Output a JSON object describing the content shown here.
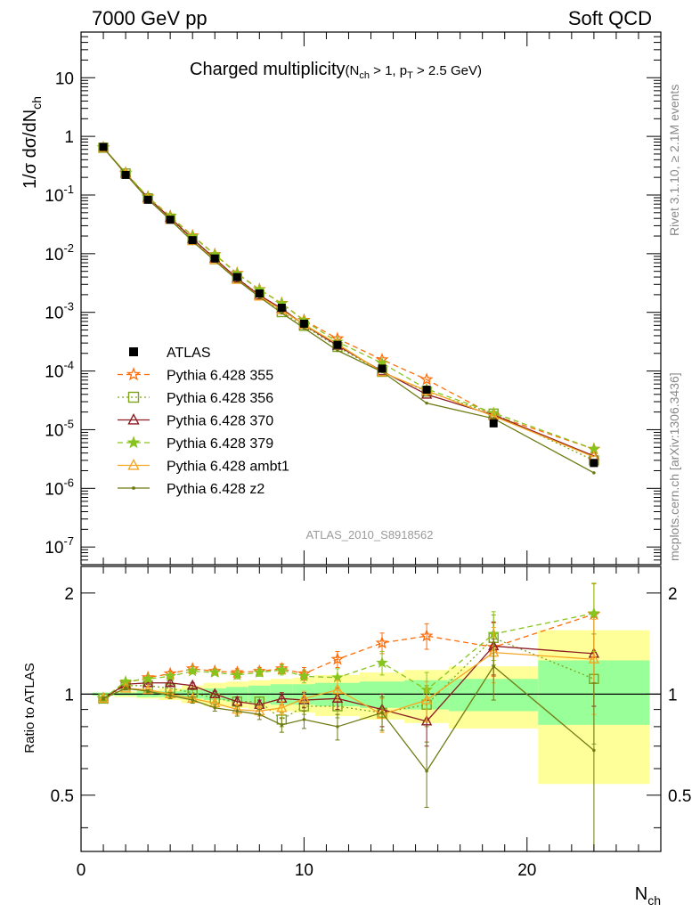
{
  "header": {
    "left": "7000 GeV pp",
    "right": "Soft QCD"
  },
  "side_labels": {
    "version": "Rivet 3.1.10, ≥ 2.1M events",
    "source": "mcplots.cern.ch [arXiv:1306.3436]"
  },
  "watermark": "ATLAS_2010_S8918562",
  "chart_data": {
    "type": "scatter",
    "title": {
      "main": "Charged multiplicity",
      "detail_open": "(N",
      "detail_sub1": "ch",
      "detail_mid": " > 1, p",
      "detail_sub2": "T",
      "detail_close": " > 2.5 GeV)"
    },
    "xlabel": {
      "base": "N",
      "sub": "ch"
    },
    "ylabel": {
      "base": "1/σ dσ/dN",
      "sub": "ch"
    },
    "ratio_ylabel": "Ratio to ATLAS",
    "xlim": [
      0,
      26
    ],
    "ylim": [
      5e-08,
      60
    ],
    "ylog": true,
    "ratio_ylim": [
      0.34,
      2.4
    ],
    "x_ticks": [
      0,
      10,
      20
    ],
    "y_ticks": [
      {
        "base": "10",
        "exp": "-7"
      },
      {
        "base": "10",
        "exp": "-6"
      },
      {
        "base": "10",
        "exp": "-5"
      },
      {
        "base": "10",
        "exp": "-4"
      },
      {
        "base": "10",
        "exp": "-3"
      },
      {
        "base": "10",
        "exp": "-2"
      },
      {
        "base": "10",
        "exp": "-1"
      },
      {
        "base": "1",
        "exp": ""
      },
      {
        "base": "10",
        "exp": ""
      }
    ],
    "y_tick_values": [
      1e-07,
      1e-06,
      1e-05,
      0.0001,
      0.001,
      0.01,
      0.1,
      1,
      10
    ],
    "ratio_ticks": [
      "0.5",
      "1",
      "2"
    ],
    "ratio_tick_values": [
      0.5,
      1,
      2
    ],
    "legend_position": "lower-left",
    "x": [
      1,
      2,
      3,
      4,
      5,
      6,
      7,
      8,
      9,
      10,
      11.5,
      13.5,
      15.5,
      18.5,
      23
    ],
    "data": {
      "name": "ATLAS",
      "values": [
        0.66,
        0.22,
        0.083,
        0.038,
        0.017,
        0.0083,
        0.004,
        0.0021,
        0.0012,
        0.00064,
        0.00028,
        0.00011,
        4.8e-05,
        1.28e-05,
        2.7e-06
      ]
    },
    "bands": {
      "x_edges": [
        0.5,
        1.5,
        2.5,
        3.5,
        4.5,
        5.5,
        6.5,
        7.5,
        8.5,
        9.5,
        10.5,
        12.5,
        14.5,
        16.5,
        20.5,
        25.5
      ],
      "stat_lo": [
        0.99,
        0.99,
        0.98,
        0.98,
        0.97,
        0.96,
        0.95,
        0.94,
        0.93,
        0.93,
        0.92,
        0.91,
        0.9,
        0.89,
        0.81
      ],
      "stat_hi": [
        1.01,
        1.01,
        1.02,
        1.02,
        1.03,
        1.04,
        1.05,
        1.06,
        1.07,
        1.07,
        1.08,
        1.09,
        1.1,
        1.11,
        1.26
      ],
      "total_lo": [
        0.99,
        0.98,
        0.97,
        0.96,
        0.94,
        0.92,
        0.91,
        0.9,
        0.89,
        0.88,
        0.86,
        0.84,
        0.82,
        0.79,
        0.54
      ],
      "total_hi": [
        1.01,
        1.02,
        1.03,
        1.04,
        1.06,
        1.08,
        1.09,
        1.1,
        1.11,
        1.12,
        1.14,
        1.16,
        1.18,
        1.21,
        1.55
      ],
      "stat_color": "#99ff99",
      "total_color": "#ffff99"
    },
    "series": [
      {
        "name": "Pythia 6.428 355",
        "color": "#ff6d0a",
        "marker": "star-open",
        "dash": "6,4",
        "ratio": [
          0.97,
          1.08,
          1.12,
          1.15,
          1.19,
          1.17,
          1.16,
          1.17,
          1.19,
          1.15,
          1.27,
          1.42,
          1.49,
          1.38,
          1.73
        ],
        "ratio_err": [
          0.01,
          0.01,
          0.01,
          0.02,
          0.02,
          0.02,
          0.03,
          0.03,
          0.04,
          0.05,
          0.07,
          0.1,
          0.13,
          0.25,
          0.4
        ]
      },
      {
        "name": "Pythia 6.428 356",
        "color": "#7fa31b",
        "marker": "square-open",
        "dash": "2,3",
        "ratio": [
          0.97,
          1.06,
          1.06,
          1.04,
          1.01,
          0.97,
          0.95,
          0.95,
          0.84,
          0.92,
          0.92,
          0.88,
          0.93,
          1.47,
          1.11
        ],
        "ratio_err": [
          0.01,
          0.01,
          0.01,
          0.02,
          0.02,
          0.02,
          0.03,
          0.03,
          0.04,
          0.05,
          0.07,
          0.1,
          0.13,
          0.25,
          0.4
        ]
      },
      {
        "name": "Pythia 6.428 370",
        "color": "#8c1c22",
        "marker": "triangle-open",
        "dash": "",
        "ratio": [
          0.97,
          1.07,
          1.08,
          1.08,
          1.06,
          1.0,
          0.95,
          0.93,
          0.97,
          0.96,
          0.97,
          0.9,
          0.83,
          1.39,
          1.32
        ],
        "ratio_err": [
          0.01,
          0.01,
          0.01,
          0.02,
          0.02,
          0.02,
          0.03,
          0.03,
          0.04,
          0.05,
          0.07,
          0.1,
          0.13,
          0.25,
          0.4
        ]
      },
      {
        "name": "Pythia 6.428 379",
        "color": "#87c41e",
        "marker": "star-filled",
        "dash": "6,4",
        "ratio": [
          0.97,
          1.09,
          1.11,
          1.13,
          1.17,
          1.16,
          1.14,
          1.16,
          1.18,
          1.13,
          1.12,
          1.24,
          1.03,
          1.51,
          1.74
        ],
        "ratio_err": [
          0.01,
          0.01,
          0.01,
          0.02,
          0.02,
          0.02,
          0.03,
          0.03,
          0.04,
          0.05,
          0.07,
          0.1,
          0.13,
          0.25,
          0.4
        ]
      },
      {
        "name": "Pythia 6.428 ambt1",
        "color": "#f5a623",
        "marker": "triangle-open",
        "dash": "",
        "ratio": [
          0.97,
          1.04,
          1.03,
          1.0,
          0.97,
          0.94,
          0.9,
          0.89,
          0.91,
          0.97,
          1.03,
          0.87,
          0.96,
          1.33,
          1.27
        ],
        "ratio_err": [
          0.01,
          0.01,
          0.01,
          0.02,
          0.02,
          0.02,
          0.03,
          0.03,
          0.04,
          0.05,
          0.07,
          0.1,
          0.13,
          0.25,
          0.4
        ]
      },
      {
        "name": "Pythia 6.428 z2",
        "color": "#6f7a13",
        "marker": "dot",
        "dash": "",
        "ratio": [
          0.97,
          1.04,
          1.02,
          0.99,
          0.96,
          0.91,
          0.89,
          0.87,
          0.81,
          0.84,
          0.8,
          0.88,
          0.59,
          1.21,
          0.68
        ],
        "ratio_err": [
          0.01,
          0.01,
          0.01,
          0.02,
          0.02,
          0.02,
          0.03,
          0.03,
          0.04,
          0.05,
          0.07,
          0.1,
          0.13,
          0.25,
          0.4
        ]
      }
    ]
  }
}
